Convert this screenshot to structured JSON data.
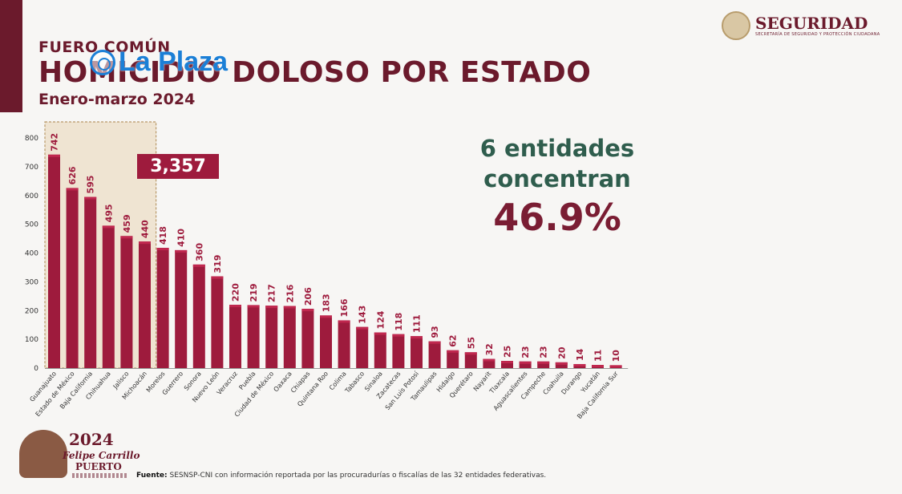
{
  "header": {
    "pre_title": "FUERO COMÚN",
    "title": "HOMICIDIO DOLOSO POR ESTADO",
    "subtitle": "Enero-marzo 2024"
  },
  "overlay_logo": "La Plaza",
  "brand": {
    "name": "SEGURIDAD",
    "tagline": "SECRETARÍA DE SEGURIDAD Y PROTECCIÓN CIUDADANA"
  },
  "highlight": {
    "total": "3,357",
    "line1": "6 entidades",
    "line2": "concentran",
    "percent": "46.9%"
  },
  "footer": {
    "source_label": "Fuente:",
    "source_text": " SESNSP-CNI con información reportada por las procuradurías o fiscalías de las 32 entidades federativas."
  },
  "campaign": {
    "year": "2024",
    "name_line1": "Felipe Carrillo",
    "name_line2": "PUERTO"
  },
  "colors": {
    "bar": "#9e1b3d",
    "bar_top": "#c0284f",
    "primary": "#6b1a2c",
    "green": "#2f5d4d",
    "highlight_box": "#9e1b3d"
  },
  "chart_data": {
    "type": "bar",
    "categories": [
      "Guanajuato",
      "Estado de México",
      "Baja California",
      "Chihuahua",
      "Jalisco",
      "Michoacán",
      "Morelos",
      "Guerrero",
      "Sonora",
      "Nuevo León",
      "Veracruz",
      "Puebla",
      "Ciudad de México",
      "Oaxaca",
      "Chiapas",
      "Quintana Roo",
      "Colima",
      "Tabasco",
      "Sinaloa",
      "Zacatecas",
      "San Luis Potosí",
      "Tamaulipas",
      "Hidalgo",
      "Querétaro",
      "Nayarit",
      "Tlaxcala",
      "Aguascalientes",
      "Campeche",
      "Coahuila",
      "Durango",
      "Yucatán",
      "Baja California Sur"
    ],
    "values": [
      742,
      626,
      595,
      495,
      459,
      440,
      418,
      410,
      360,
      319,
      220,
      219,
      217,
      216,
      206,
      183,
      166,
      143,
      124,
      118,
      111,
      93,
      62,
      55,
      32,
      25,
      23,
      23,
      20,
      14,
      11,
      10
    ],
    "yticks": [
      0,
      100,
      200,
      300,
      400,
      500,
      600,
      700,
      800
    ],
    "ylim": [
      0,
      800
    ],
    "highlighted_count": 6,
    "grid": false
  }
}
